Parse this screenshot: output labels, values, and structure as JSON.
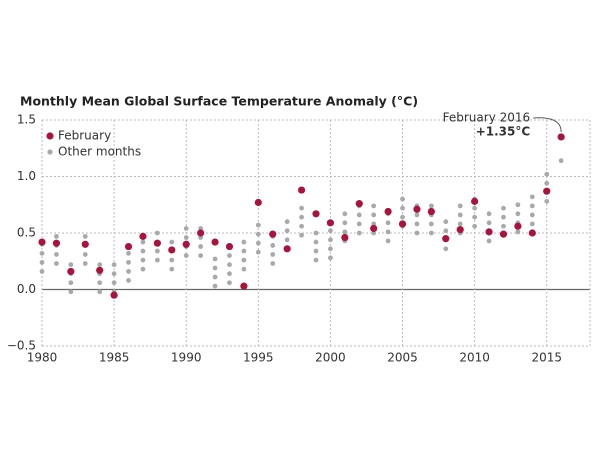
{
  "chart_data": {
    "type": "scatter",
    "title": "Monthly Mean Global Surface Temperature Anomaly (°C)",
    "annotations": [
      "February 2016",
      "+1.35°C"
    ],
    "xlim": [
      1980,
      2018
    ],
    "ylim": [
      -0.5,
      1.5
    ],
    "xticks": [
      1980,
      1985,
      1990,
      1995,
      2000,
      2005,
      2010,
      2015
    ],
    "yticks": [
      {
        "value": 1.5,
        "label": "1.5"
      },
      {
        "value": 1.0,
        "label": "1.0"
      },
      0.5,
      {
        "value": 0.0,
        "label": "0.0"
      },
      {
        "value": -0.5,
        "label": "−0.5"
      }
    ],
    "grid": true,
    "legend": "upper left",
    "series": [
      {
        "name": "Other months",
        "color": "#a9a9a9",
        "x": [
          1980,
          1980,
          1980,
          1980,
          1981,
          1981,
          1981,
          1981,
          1982,
          1982,
          1982,
          1982,
          1983,
          1983,
          1983,
          1983,
          1984,
          1984,
          1984,
          1984,
          1985,
          1985,
          1985,
          1985,
          1986,
          1986,
          1986,
          1986,
          1987,
          1987,
          1987,
          1987,
          1988,
          1988,
          1988,
          1988,
          1989,
          1989,
          1989,
          1989,
          1990,
          1990,
          1990,
          1990,
          1991,
          1991,
          1991,
          1991,
          1992,
          1992,
          1992,
          1992,
          1993,
          1993,
          1993,
          1993,
          1994,
          1994,
          1994,
          1994,
          1995,
          1995,
          1995,
          1995,
          1996,
          1996,
          1996,
          1996,
          1997,
          1997,
          1997,
          1997,
          1998,
          1998,
          1998,
          1998,
          1999,
          1999,
          1999,
          1999,
          2000,
          2000,
          2000,
          2000,
          2001,
          2001,
          2001,
          2001,
          2002,
          2002,
          2002,
          2002,
          2003,
          2003,
          2003,
          2003,
          2004,
          2004,
          2004,
          2004,
          2005,
          2005,
          2005,
          2005,
          2006,
          2006,
          2006,
          2006,
          2007,
          2007,
          2007,
          2007,
          2008,
          2008,
          2008,
          2008,
          2009,
          2009,
          2009,
          2009,
          2010,
          2010,
          2010,
          2010,
          2011,
          2011,
          2011,
          2011,
          2012,
          2012,
          2012,
          2012,
          2013,
          2013,
          2013,
          2013,
          2014,
          2014,
          2014,
          2014,
          2015,
          2015,
          2015,
          2015,
          2016
        ],
        "values": [
          0.16,
          0.24,
          0.32,
          0.4,
          0.23,
          0.31,
          0.39,
          0.47,
          -0.02,
          0.06,
          0.14,
          0.22,
          0.23,
          0.31,
          0.39,
          0.47,
          -0.02,
          0.06,
          0.14,
          0.22,
          -0.02,
          0.06,
          0.14,
          0.22,
          0.08,
          0.16,
          0.24,
          0.32,
          0.18,
          0.26,
          0.34,
          0.42,
          0.26,
          0.34,
          0.42,
          0.5,
          0.18,
          0.26,
          0.34,
          0.42,
          0.3,
          0.38,
          0.46,
          0.54,
          0.3,
          0.38,
          0.46,
          0.54,
          0.03,
          0.11,
          0.19,
          0.27,
          0.06,
          0.14,
          0.22,
          0.3,
          0.18,
          0.26,
          0.34,
          0.42,
          0.33,
          0.41,
          0.49,
          0.57,
          0.23,
          0.31,
          0.39,
          0.47,
          0.36,
          0.44,
          0.52,
          0.6,
          0.48,
          0.56,
          0.64,
          0.72,
          0.26,
          0.34,
          0.42,
          0.5,
          0.28,
          0.36,
          0.44,
          0.52,
          0.43,
          0.51,
          0.59,
          0.67,
          0.5,
          0.58,
          0.66,
          0.74,
          0.5,
          0.58,
          0.66,
          0.74,
          0.43,
          0.51,
          0.59,
          0.67,
          0.56,
          0.64,
          0.72,
          0.8,
          0.5,
          0.58,
          0.66,
          0.74,
          0.5,
          0.58,
          0.66,
          0.74,
          0.36,
          0.44,
          0.52,
          0.6,
          0.5,
          0.58,
          0.66,
          0.74,
          0.56,
          0.64,
          0.72,
          0.8,
          0.43,
          0.51,
          0.59,
          0.67,
          0.48,
          0.56,
          0.64,
          0.72,
          0.51,
          0.59,
          0.67,
          0.75,
          0.58,
          0.66,
          0.74,
          0.82,
          0.78,
          0.86,
          0.94,
          1.02,
          1.14
        ]
      },
      {
        "name": "February",
        "color": "#a5163f",
        "x": [
          1980,
          1981,
          1982,
          1983,
          1984,
          1985,
          1986,
          1987,
          1988,
          1989,
          1990,
          1991,
          1992,
          1993,
          1994,
          1995,
          1996,
          1997,
          1998,
          1999,
          2000,
          2001,
          2002,
          2003,
          2004,
          2005,
          2006,
          2007,
          2008,
          2009,
          2010,
          2011,
          2012,
          2013,
          2014,
          2015,
          2016
        ],
        "values": [
          0.42,
          0.41,
          0.16,
          0.4,
          0.17,
          -0.05,
          0.38,
          0.47,
          0.41,
          0.35,
          0.4,
          0.5,
          0.42,
          0.38,
          0.03,
          0.77,
          0.49,
          0.36,
          0.88,
          0.67,
          0.59,
          0.46,
          0.76,
          0.54,
          0.69,
          0.58,
          0.71,
          0.69,
          0.45,
          0.53,
          0.78,
          0.51,
          0.49,
          0.56,
          0.5,
          0.87,
          1.35
        ]
      }
    ]
  }
}
